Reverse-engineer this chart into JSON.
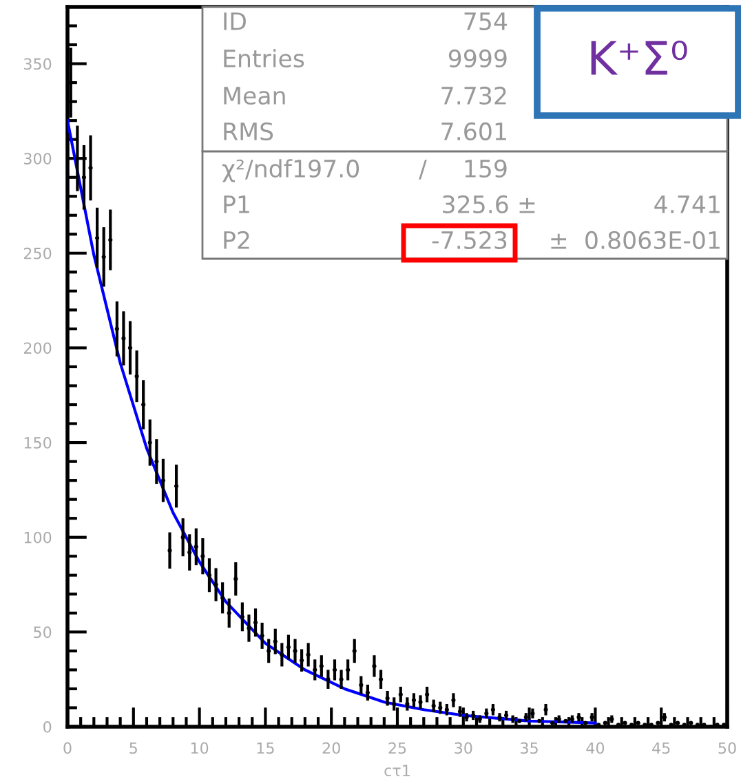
{
  "chart_data": {
    "type": "scatter",
    "xlabel": "cτ1",
    "xlim": [
      0,
      50
    ],
    "ylim": [
      0,
      380
    ],
    "xticks": [
      0,
      {
        "value": 1,
        "label": null
      },
      {
        "value": 2,
        "label": null
      },
      {
        "value": 3,
        "label": null
      },
      {
        "value": 4,
        "label": null
      },
      5,
      {
        "value": 6,
        "label": null
      },
      {
        "value": 7,
        "label": null
      },
      {
        "value": 8,
        "label": null
      },
      {
        "value": 9,
        "label": null
      },
      10,
      {
        "value": 11,
        "label": null
      },
      {
        "value": 12,
        "label": null
      },
      {
        "value": 13,
        "label": null
      },
      {
        "value": 14,
        "label": null
      },
      15,
      {
        "value": 16,
        "label": null
      },
      {
        "value": 17,
        "label": null
      },
      {
        "value": 18,
        "label": null
      },
      {
        "value": 19,
        "label": null
      },
      20,
      {
        "value": 21,
        "label": null
      },
      {
        "value": 22,
        "label": null
      },
      {
        "value": 23,
        "label": null
      },
      {
        "value": 24,
        "label": null
      },
      25,
      {
        "value": 26,
        "label": null
      },
      {
        "value": 27,
        "label": null
      },
      {
        "value": 28,
        "label": null
      },
      {
        "value": 29,
        "label": null
      },
      30,
      {
        "value": 31,
        "label": null
      },
      {
        "value": 32,
        "label": null
      },
      {
        "value": 33,
        "label": null
      },
      {
        "value": 34,
        "label": null
      },
      35,
      {
        "value": 36,
        "label": null
      },
      {
        "value": 37,
        "label": null
      },
      {
        "value": 38,
        "label": null
      },
      {
        "value": 39,
        "label": null
      },
      40,
      {
        "value": 41,
        "label": null
      },
      {
        "value": 42,
        "label": null
      },
      {
        "value": 43,
        "label": null
      },
      {
        "value": 44,
        "label": null
      },
      45,
      {
        "value": 46,
        "label": null
      },
      {
        "value": 47,
        "label": null
      },
      {
        "value": 48,
        "label": null
      },
      {
        "value": 49,
        "label": null
      },
      50
    ],
    "yticks": [
      0,
      {
        "value": 10,
        "label": null
      },
      {
        "value": 20,
        "label": null
      },
      {
        "value": 30,
        "label": null
      },
      {
        "value": 40,
        "label": null
      },
      50,
      {
        "value": 60,
        "label": null
      },
      {
        "value": 70,
        "label": null
      },
      {
        "value": 80,
        "label": null
      },
      {
        "value": 90,
        "label": null
      },
      100,
      {
        "value": 110,
        "label": null
      },
      {
        "value": 120,
        "label": null
      },
      {
        "value": 130,
        "label": null
      },
      {
        "value": 140,
        "label": null
      },
      150,
      {
        "value": 160,
        "label": null
      },
      {
        "value": 170,
        "label": null
      },
      {
        "value": 180,
        "label": null
      },
      {
        "value": 190,
        "label": null
      },
      200,
      {
        "value": 210,
        "label": null
      },
      {
        "value": 220,
        "label": null
      },
      {
        "value": 230,
        "label": null
      },
      {
        "value": 240,
        "label": null
      },
      250,
      {
        "value": 260,
        "label": null
      },
      {
        "value": 270,
        "label": null
      },
      {
        "value": 280,
        "label": null
      },
      {
        "value": 290,
        "label": null
      },
      300,
      {
        "value": 310,
        "label": null
      },
      {
        "value": 320,
        "label": null
      },
      {
        "value": 330,
        "label": null
      },
      {
        "value": 340,
        "label": null
      },
      350,
      {
        "value": 360,
        "label": null
      },
      {
        "value": 370,
        "label": null
      }
    ],
    "series": [
      {
        "color": "#000000",
        "marker": "circle",
        "x": [
          0.25,
          0.75,
          1.25,
          1.75,
          2.25,
          2.75,
          3.25,
          3.75,
          4.25,
          4.75,
          5.25,
          5.75,
          6.25,
          6.75,
          7.25,
          7.75,
          8.25,
          8.75,
          9.25,
          9.75,
          10.25,
          10.75,
          11.25,
          11.75,
          12.25,
          12.75,
          13.25,
          13.75,
          14.25,
          14.75,
          15.25,
          15.75,
          16.25,
          16.75,
          17.25,
          17.75,
          18.25,
          18.75,
          19.25,
          19.75,
          20.25,
          20.75,
          21.25,
          21.75,
          22.25,
          22.75,
          23.25,
          23.75,
          24.25,
          24.75,
          25.25,
          25.75,
          26.25,
          26.75,
          27.25,
          27.75,
          28.25,
          28.75,
          29.25,
          29.75,
          30.25,
          30.75,
          31.25,
          31.75,
          32.25,
          32.75,
          33.25,
          33.75,
          34.25,
          34.75,
          35.25,
          35.75,
          36.25,
          36.75,
          37.25,
          37.75,
          38.25,
          38.75,
          39.25,
          39.75,
          40.25,
          40.75,
          41.25,
          41.75,
          42.25,
          42.75,
          43.25,
          43.75,
          44.25,
          44.75,
          45.25,
          45.75,
          46.25,
          46.75,
          47.25,
          47.75,
          48.25,
          48.75,
          49.25,
          49.75
        ],
        "values": [
          340,
          300,
          290,
          295,
          258,
          248,
          257,
          210,
          205,
          200,
          185,
          170,
          150,
          140,
          130,
          93,
          127,
          100,
          92,
          95,
          90,
          80,
          75,
          68,
          60,
          78,
          58,
          52,
          55,
          48,
          40,
          45,
          38,
          42,
          40,
          35,
          38,
          30,
          32,
          25,
          30,
          25,
          30,
          40,
          22,
          18,
          32,
          25,
          15,
          12,
          17,
          12,
          14,
          13,
          17,
          11,
          10,
          9,
          14,
          8,
          5,
          6,
          4,
          7,
          9,
          5,
          6,
          4,
          3,
          5,
          7,
          3,
          9,
          2,
          4,
          3,
          4,
          5,
          2,
          5,
          1,
          2,
          4,
          1,
          2,
          1,
          2,
          1,
          1,
          2,
          5,
          1,
          2,
          1,
          2,
          1,
          1,
          0,
          1,
          1
        ],
        "errors": [
          18.4,
          17.3,
          17,
          17.2,
          16,
          15.7,
          16,
          14.5,
          14.3,
          14.1,
          13.6,
          13,
          12.2,
          11.8,
          11.4,
          9.6,
          11.3,
          10,
          9.6,
          9.7,
          9.5,
          8.9,
          8.7,
          8.2,
          7.7,
          8.8,
          7.6,
          7.2,
          7.4,
          6.9,
          6.3,
          6.7,
          6.2,
          6.5,
          6.3,
          5.9,
          6.2,
          5.5,
          5.7,
          5,
          5.5,
          5,
          5.5,
          6.3,
          4.7,
          4.2,
          5.7,
          5,
          3.9,
          3.5,
          4.1,
          3.5,
          3.7,
          3.6,
          4.1,
          3.3,
          3.2,
          3,
          3.7,
          2.8,
          2.2,
          2.4,
          2,
          2.6,
          3,
          2.2,
          2.4,
          2,
          null,
          2.2,
          2.6,
          null,
          3,
          null,
          2,
          null,
          2,
          2.2,
          null,
          2.2,
          null,
          null,
          2,
          null,
          null,
          null,
          null,
          null,
          null,
          null,
          2.2,
          null,
          null,
          null,
          null,
          null,
          null,
          null,
          null,
          null
        ]
      },
      {
        "type": "line",
        "color": "#0000ff",
        "x": [
          0,
          2,
          4,
          6,
          8,
          10,
          12,
          15,
          18,
          21,
          24,
          27,
          30,
          35,
          40
        ],
        "values": [
          320,
          249,
          192,
          147,
          113,
          87,
          66,
          44,
          30,
          20,
          13,
          9,
          6,
          3,
          2
        ]
      }
    ],
    "annotations": [
      "ID",
      "754",
      "Entries",
      "9999",
      "Mean",
      "7.732",
      "RMS",
      "7.601",
      "χ²/ndf197.0",
      "/",
      "159",
      "P1",
      "325.6 ±",
      "4.741",
      "P2",
      "-7.523",
      "±  0.8063E-01",
      "K⁺Σ⁰"
    ]
  }
}
